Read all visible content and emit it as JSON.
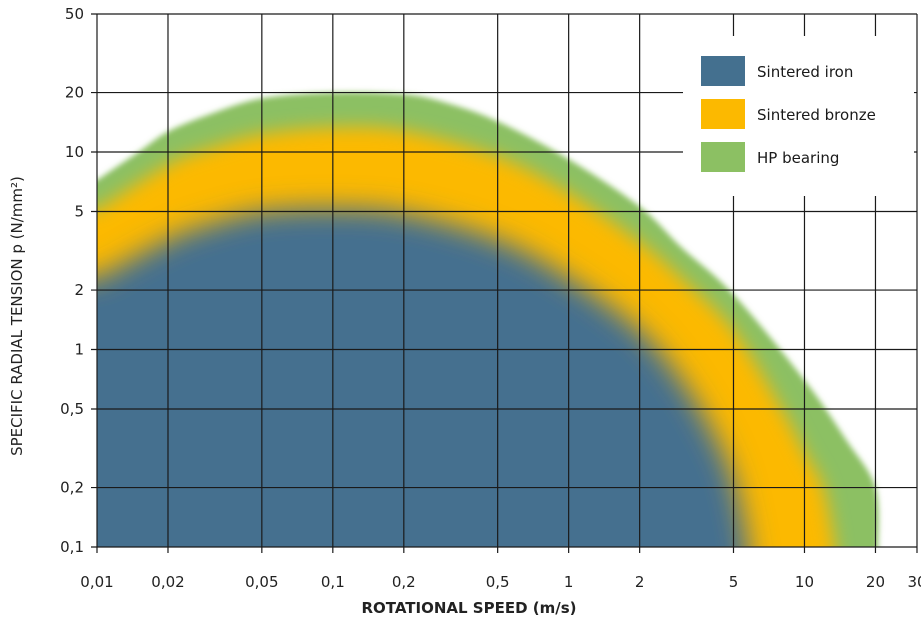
{
  "chart_data": {
    "type": "area",
    "xlabel": "ROTATIONAL SPEED  (m/s)",
    "ylabel": "SPECIFIC RADIAL TENSION p (N/mm²)",
    "x_scale": "log",
    "y_scale": "log",
    "xlim": [
      0.01,
      30
    ],
    "ylim": [
      0.1,
      50
    ],
    "grid": true,
    "legend_position": "top-right",
    "x_ticks": [
      {
        "value": 0.01,
        "label": "0,01"
      },
      {
        "value": 0.02,
        "label": "0,02"
      },
      {
        "value": 0.05,
        "label": "0,05"
      },
      {
        "value": 0.1,
        "label": "0,1"
      },
      {
        "value": 0.2,
        "label": "0,2"
      },
      {
        "value": 0.5,
        "label": "0,5"
      },
      {
        "value": 1,
        "label": "1"
      },
      {
        "value": 2,
        "label": "2"
      },
      {
        "value": 5,
        "label": "5"
      },
      {
        "value": 10,
        "label": "10"
      },
      {
        "value": 20,
        "label": "20"
      },
      {
        "value": 30,
        "label": "30"
      }
    ],
    "y_ticks": [
      {
        "value": 0.1,
        "label": "0,1"
      },
      {
        "value": 0.2,
        "label": "0,2"
      },
      {
        "value": 0.5,
        "label": "0,5"
      },
      {
        "value": 1,
        "label": "1"
      },
      {
        "value": 2,
        "label": "2"
      },
      {
        "value": 5,
        "label": "5"
      },
      {
        "value": 10,
        "label": "10"
      },
      {
        "value": 20,
        "label": "20"
      },
      {
        "value": 50,
        "label": "50"
      }
    ],
    "series": [
      {
        "name": "HP bearing",
        "color": "#8cc063",
        "boundary": [
          {
            "x": 0.01,
            "y": 7.2
          },
          {
            "x": 0.015,
            "y": 10
          },
          {
            "x": 0.02,
            "y": 12.7
          },
          {
            "x": 0.03,
            "y": 15.5
          },
          {
            "x": 0.05,
            "y": 18.7
          },
          {
            "x": 0.1,
            "y": 20
          },
          {
            "x": 0.2,
            "y": 19.6
          },
          {
            "x": 0.3,
            "y": 17.8
          },
          {
            "x": 0.5,
            "y": 14.3
          },
          {
            "x": 1,
            "y": 9.2
          },
          {
            "x": 2,
            "y": 5.3
          },
          {
            "x": 3,
            "y": 3.3
          },
          {
            "x": 5,
            "y": 1.9
          },
          {
            "x": 10,
            "y": 0.7
          },
          {
            "x": 15,
            "y": 0.35
          },
          {
            "x": 20,
            "y": 0.2
          },
          {
            "x": 20.5,
            "y": 0.1
          }
        ]
      },
      {
        "name": "Sintered bronze",
        "color": "#fcb900",
        "boundary": [
          {
            "x": 0.01,
            "y": 5.1
          },
          {
            "x": 0.02,
            "y": 8.6
          },
          {
            "x": 0.03,
            "y": 10.4
          },
          {
            "x": 0.05,
            "y": 12.3
          },
          {
            "x": 0.1,
            "y": 13.3
          },
          {
            "x": 0.2,
            "y": 12.8
          },
          {
            "x": 0.5,
            "y": 9.5
          },
          {
            "x": 1,
            "y": 6.2
          },
          {
            "x": 2,
            "y": 3.5
          },
          {
            "x": 3,
            "y": 2.3
          },
          {
            "x": 5,
            "y": 1.25
          },
          {
            "x": 8,
            "y": 0.5
          },
          {
            "x": 10,
            "y": 0.3
          },
          {
            "x": 12,
            "y": 0.2
          },
          {
            "x": 13.5,
            "y": 0.1
          }
        ]
      },
      {
        "name": "Sintered iron",
        "color": "#44708f",
        "boundary": [
          {
            "x": 0.01,
            "y": 2.3
          },
          {
            "x": 0.02,
            "y": 3.6
          },
          {
            "x": 0.03,
            "y": 4.3
          },
          {
            "x": 0.05,
            "y": 5.0
          },
          {
            "x": 0.1,
            "y": 5.2
          },
          {
            "x": 0.2,
            "y": 4.9
          },
          {
            "x": 0.5,
            "y": 3.6
          },
          {
            "x": 1,
            "y": 2.3
          },
          {
            "x": 2,
            "y": 1.25
          },
          {
            "x": 3,
            "y": 0.7
          },
          {
            "x": 4,
            "y": 0.4
          },
          {
            "x": 5,
            "y": 0.22
          },
          {
            "x": 5.8,
            "y": 0.1
          }
        ]
      }
    ]
  }
}
